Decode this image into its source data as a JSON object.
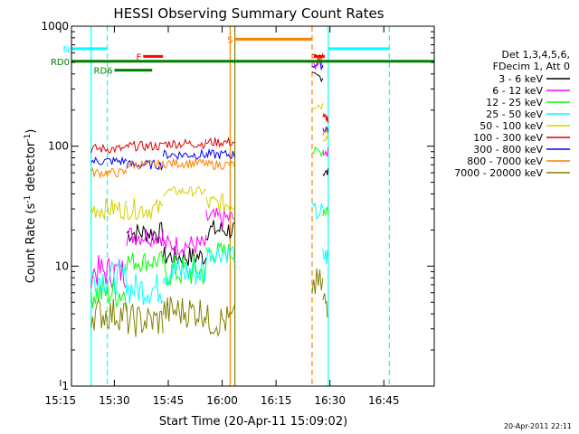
{
  "chart_data": {
    "type": "line",
    "title": "HESSI Observing Summary Count Rates",
    "xlabel": "Start Time (20-Apr-11 15:09:02)",
    "ylabel_main": "Count Rate (s",
    "ylabel_sup1": "-1",
    "ylabel_mid": " detector",
    "ylabel_sup2": "-1",
    "ylabel_end": ")",
    "yscale": "log",
    "ylim": [
      1,
      1000
    ],
    "xlim_min": [
      9.03,
      110.0
    ],
    "x_unit": "minutes after 15:09:02",
    "x_ticks": [
      {
        "label": "15:15",
        "min": 5.97
      },
      {
        "label": "15:30",
        "min": 20.97
      },
      {
        "label": "15:45",
        "min": 35.97
      },
      {
        "label": "16:00",
        "min": 50.97
      },
      {
        "label": "16:15",
        "min": 65.97
      },
      {
        "label": "16:30",
        "min": 80.97
      },
      {
        "label": "16:45",
        "min": 95.97
      }
    ],
    "y_ticks": [
      {
        "label": "1",
        "v": 1
      },
      {
        "label": "10",
        "v": 10
      },
      {
        "label": "100",
        "v": 100
      },
      {
        "label": "1000",
        "v": 1000
      }
    ],
    "legend": {
      "header": [
        "Det 1,3,4,5,6,",
        "FDecim 1, Att 0"
      ],
      "placement": "right"
    },
    "series": [
      {
        "name": "3 - 6 keV",
        "color": "#000000"
      },
      {
        "name": "6 - 12 keV",
        "color": "#ff00ff"
      },
      {
        "name": "12 - 25 keV",
        "color": "#00ff00"
      },
      {
        "name": "25 - 50 keV",
        "color": "#00ffff"
      },
      {
        "name": "50 - 100 keV",
        "color": "#d2d200"
      },
      {
        "name": "100 - 300 keV",
        "color": "#dd0000"
      },
      {
        "name": "300 - 800 keV",
        "color": "#0000ff"
      },
      {
        "name": "800 - 7000 keV",
        "color": "#ff8000"
      },
      {
        "name": "7000 - 20000 keV",
        "color": "#808000"
      }
    ],
    "segments": [
      {
        "t0": 14.5,
        "t1": 24.4,
        "levels": [
          null,
          9,
          6,
          8,
          30,
          95,
          75,
          60,
          4
        ]
      },
      {
        "t0": 24.4,
        "t1": 34.5,
        "levels": [
          19,
          18,
          11,
          6.5,
          30,
          100,
          70,
          70,
          3.5
        ]
      },
      {
        "t0": 34.5,
        "t1": 46.5,
        "levels": [
          12,
          15,
          9,
          9,
          42,
          105,
          85,
          72,
          4.2
        ]
      },
      {
        "t0": 46.5,
        "t1": 54.4,
        "levels": [
          20,
          25,
          13,
          13,
          33,
          108,
          85,
          70,
          3.5
        ]
      },
      {
        "t0": 76.0,
        "t1": 79.0,
        "levels": [
          380,
          480,
          90,
          28,
          220,
          550,
          480,
          520,
          7
        ]
      },
      {
        "t0": 79.0,
        "t1": 80.5,
        "levels": [
          60,
          90,
          30,
          12,
          120,
          170,
          140,
          130,
          5
        ]
      }
    ],
    "vertical_lines": [
      {
        "min": 14.5,
        "color": "#00ffff",
        "style": "solid"
      },
      {
        "min": 19.0,
        "color": "#00ffff",
        "style": "dashed"
      },
      {
        "min": 53.2,
        "color": "#ff8000",
        "style": "solid"
      },
      {
        "min": 54.5,
        "color": "#808000",
        "style": "solid"
      },
      {
        "min": 76.0,
        "color": "#ff8000",
        "style": "dashed"
      },
      {
        "min": 80.5,
        "color": "#00ffff",
        "style": "solid"
      },
      {
        "min": 97.5,
        "color": "#00ffff",
        "style": "dashed"
      }
    ],
    "flag_bars": [
      {
        "label": "N",
        "color": "#00ffff",
        "value": 650,
        "segments": [
          [
            9.03,
            19.0
          ],
          [
            80.5,
            97.5
          ]
        ]
      },
      {
        "label": "S",
        "color": "#ff8000",
        "value": 780,
        "segments": [
          [
            54.5,
            76.0
          ]
        ]
      },
      {
        "label": "RD0",
        "color": "#008000",
        "value": 510,
        "segments": [
          [
            9.03,
            110.0
          ]
        ]
      },
      {
        "label": "RD6",
        "color": "#008000",
        "value": 430,
        "segments": [
          [
            21.0,
            31.5
          ]
        ]
      },
      {
        "label": "F",
        "color": "#ff0000",
        "value": 560,
        "segments": [
          [
            29.0,
            34.5
          ],
          [
            76.5,
            79.5
          ]
        ]
      }
    ]
  },
  "footer": {
    "timestamp": "20-Apr-2011 22:11"
  }
}
